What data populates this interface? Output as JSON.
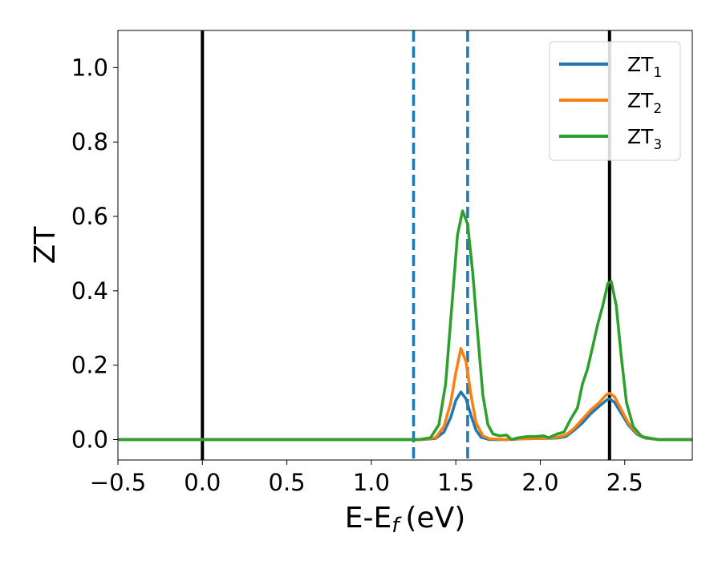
{
  "chart_data": {
    "type": "line",
    "title": "",
    "xlabel": "E-E",
    "xlabel_sub": "f",
    "xlabel_unit": "(eV)",
    "ylabel": "ZT",
    "xlim": [
      -0.5,
      2.9
    ],
    "ylim": [
      -0.055,
      1.1
    ],
    "xticks": [
      -0.5,
      0.0,
      0.5,
      1.0,
      1.5,
      2.0,
      2.5
    ],
    "xtick_labels": [
      "−0.5",
      "0.0",
      "0.5",
      "1.0",
      "1.5",
      "2.0",
      "2.5"
    ],
    "yticks": [
      0.0,
      0.2,
      0.4,
      0.6,
      0.8,
      1.0
    ],
    "ytick_labels": [
      "0.0",
      "0.2",
      "0.4",
      "0.6",
      "0.8",
      "1.0"
    ],
    "grid": false,
    "legend_position": "top-right",
    "vertical_lines": [
      {
        "x": 0.0,
        "style": "solid",
        "color": "#000000"
      },
      {
        "x": 2.41,
        "style": "solid",
        "color": "#000000"
      },
      {
        "x": 1.25,
        "style": "dashed",
        "color": "#1f77b4"
      },
      {
        "x": 1.57,
        "style": "dashed",
        "color": "#1f77b4"
      }
    ],
    "series": [
      {
        "name": "ZT",
        "name_sub": "1",
        "color": "#1f77b4",
        "points": [
          [
            -0.5,
            0.0
          ],
          [
            1.3,
            0.0
          ],
          [
            1.38,
            0.003
          ],
          [
            1.43,
            0.02
          ],
          [
            1.47,
            0.06
          ],
          [
            1.5,
            0.105
          ],
          [
            1.53,
            0.128
          ],
          [
            1.56,
            0.11
          ],
          [
            1.59,
            0.065
          ],
          [
            1.62,
            0.025
          ],
          [
            1.65,
            0.006
          ],
          [
            1.7,
            0.0
          ],
          [
            1.8,
            0.0
          ],
          [
            1.9,
            0.002
          ],
          [
            2.0,
            0.003
          ],
          [
            2.1,
            0.004
          ],
          [
            2.15,
            0.008
          ],
          [
            2.2,
            0.025
          ],
          [
            2.25,
            0.045
          ],
          [
            2.3,
            0.07
          ],
          [
            2.35,
            0.09
          ],
          [
            2.39,
            0.105
          ],
          [
            2.41,
            0.11
          ],
          [
            2.44,
            0.1
          ],
          [
            2.48,
            0.07
          ],
          [
            2.52,
            0.04
          ],
          [
            2.57,
            0.015
          ],
          [
            2.62,
            0.004
          ],
          [
            2.7,
            0.0
          ],
          [
            2.9,
            0.0
          ]
        ]
      },
      {
        "name": "ZT",
        "name_sub": "2",
        "color": "#ff7f0e",
        "points": [
          [
            -0.5,
            0.0
          ],
          [
            1.3,
            0.0
          ],
          [
            1.38,
            0.005
          ],
          [
            1.43,
            0.035
          ],
          [
            1.47,
            0.1
          ],
          [
            1.5,
            0.18
          ],
          [
            1.53,
            0.245
          ],
          [
            1.56,
            0.21
          ],
          [
            1.59,
            0.12
          ],
          [
            1.62,
            0.045
          ],
          [
            1.66,
            0.01
          ],
          [
            1.7,
            0.002
          ],
          [
            1.8,
            0.0
          ],
          [
            1.9,
            0.002
          ],
          [
            2.0,
            0.003
          ],
          [
            2.1,
            0.006
          ],
          [
            2.15,
            0.012
          ],
          [
            2.2,
            0.03
          ],
          [
            2.25,
            0.055
          ],
          [
            2.3,
            0.08
          ],
          [
            2.35,
            0.1
          ],
          [
            2.39,
            0.12
          ],
          [
            2.41,
            0.125
          ],
          [
            2.44,
            0.115
          ],
          [
            2.48,
            0.08
          ],
          [
            2.52,
            0.045
          ],
          [
            2.57,
            0.018
          ],
          [
            2.62,
            0.005
          ],
          [
            2.7,
            0.0
          ],
          [
            2.9,
            0.0
          ]
        ]
      },
      {
        "name": "ZT",
        "name_sub": "3",
        "color": "#2ca02c",
        "points": [
          [
            -0.5,
            0.0
          ],
          [
            1.28,
            0.0
          ],
          [
            1.35,
            0.005
          ],
          [
            1.4,
            0.04
          ],
          [
            1.44,
            0.15
          ],
          [
            1.48,
            0.38
          ],
          [
            1.51,
            0.55
          ],
          [
            1.54,
            0.615
          ],
          [
            1.57,
            0.58
          ],
          [
            1.6,
            0.45
          ],
          [
            1.63,
            0.28
          ],
          [
            1.66,
            0.12
          ],
          [
            1.69,
            0.04
          ],
          [
            1.72,
            0.015
          ],
          [
            1.76,
            0.01
          ],
          [
            1.8,
            0.012
          ],
          [
            1.83,
            0.0
          ],
          [
            1.87,
            0.005
          ],
          [
            1.92,
            0.008
          ],
          [
            1.97,
            0.008
          ],
          [
            2.02,
            0.01
          ],
          [
            2.05,
            0.005
          ],
          [
            2.1,
            0.015
          ],
          [
            2.14,
            0.02
          ],
          [
            2.18,
            0.055
          ],
          [
            2.22,
            0.085
          ],
          [
            2.25,
            0.15
          ],
          [
            2.28,
            0.19
          ],
          [
            2.31,
            0.25
          ],
          [
            2.34,
            0.31
          ],
          [
            2.37,
            0.36
          ],
          [
            2.4,
            0.42
          ],
          [
            2.42,
            0.425
          ],
          [
            2.45,
            0.36
          ],
          [
            2.48,
            0.22
          ],
          [
            2.51,
            0.1
          ],
          [
            2.55,
            0.035
          ],
          [
            2.6,
            0.008
          ],
          [
            2.7,
            0.0
          ],
          [
            2.9,
            0.0
          ]
        ]
      }
    ]
  }
}
